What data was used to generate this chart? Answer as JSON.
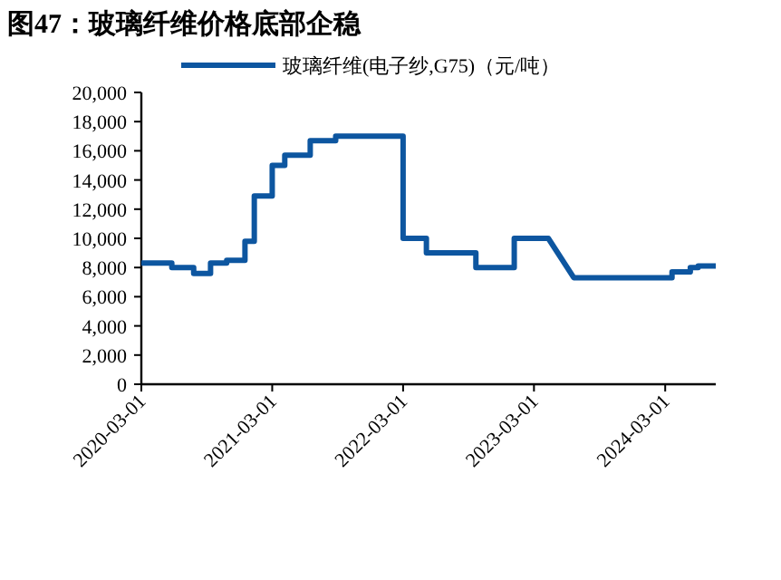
{
  "chart_data": {
    "type": "line",
    "title": "图47：玻璃纤维价格底部企稳",
    "legend": "top",
    "series": [
      {
        "name": "玻璃纤维(电子纱,G75)（元/吨）",
        "color": "#0d56a0",
        "x": [
          "2020-03-01",
          "2020-05-25",
          "2020-05-25",
          "2020-07-25",
          "2020-07-25",
          "2020-09-10",
          "2020-09-10",
          "2020-10-25",
          "2020-10-25",
          "2020-12-15",
          "2020-12-15",
          "2021-01-10",
          "2021-01-10",
          "2021-03-01",
          "2021-03-01",
          "2021-04-05",
          "2021-04-05",
          "2021-06-15",
          "2021-06-15",
          "2021-08-25",
          "2021-08-25",
          "2022-03-01",
          "2022-03-01",
          "2022-05-05",
          "2022-05-05",
          "2022-09-20",
          "2022-09-20",
          "2023-01-05",
          "2023-01-05",
          "2023-04-10",
          "2023-06-20",
          "2024-03-20",
          "2024-03-20",
          "2024-05-10",
          "2024-05-10",
          "2024-06-01",
          "2024-06-01",
          "2024-07-20"
        ],
        "values": [
          8300,
          8300,
          8000,
          8000,
          7600,
          7600,
          8300,
          8300,
          8500,
          8500,
          9800,
          9800,
          12900,
          12900,
          15000,
          15000,
          15700,
          15700,
          16700,
          16700,
          17000,
          17000,
          10000,
          10000,
          9000,
          9000,
          8000,
          8000,
          10000,
          10000,
          7300,
          7300,
          7700,
          7700,
          8000,
          8000,
          8100,
          8100
        ]
      }
    ],
    "xlim": [
      "2020-03-01",
      "2024-07-20"
    ],
    "xticks": [
      {
        "value": "2020-03-01",
        "label": "2020-03-01"
      },
      {
        "value": "2021-03-01",
        "label": "2021-03-01"
      },
      {
        "value": "2022-03-01",
        "label": "2022-03-01"
      },
      {
        "value": "2023-03-01",
        "label": "2023-03-01"
      },
      {
        "value": "2024-03-01",
        "label": "2024-03-01"
      }
    ],
    "ylim": [
      0,
      20000
    ],
    "yticks": [
      0,
      {
        "value": 2000,
        "label": "2,000"
      },
      {
        "value": 4000,
        "label": "4,000"
      },
      {
        "value": 6000,
        "label": "6,000"
      },
      {
        "value": 8000,
        "label": "8,000"
      },
      {
        "value": 10000,
        "label": "10,000"
      },
      {
        "value": 12000,
        "label": "12,000"
      },
      {
        "value": 14000,
        "label": "14,000"
      },
      {
        "value": 16000,
        "label": "16,000"
      },
      {
        "value": 18000,
        "label": "18,000"
      },
      {
        "value": 20000,
        "label": "20,000"
      }
    ]
  }
}
